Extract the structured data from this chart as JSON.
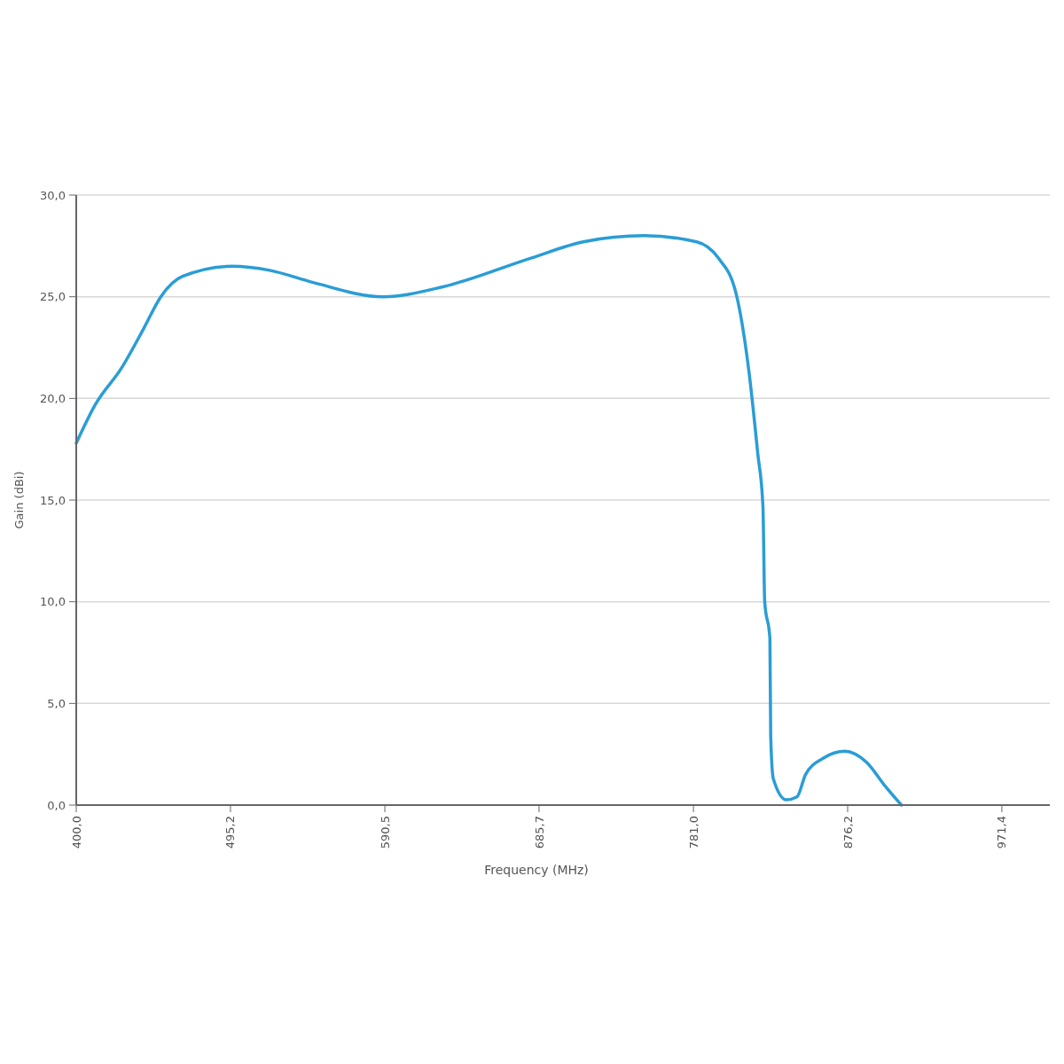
{
  "chart_data": {
    "type": "line",
    "xlabel": "Frequency (MHz)",
    "ylabel": "Gain (dBi)",
    "xlim": [
      400,
      1001
    ],
    "ylim": [
      0,
      30
    ],
    "xticks": [
      {
        "value": 400,
        "label": "400,0"
      },
      {
        "value": 495.2,
        "label": "495,2"
      },
      {
        "value": 590.5,
        "label": "590,5"
      },
      {
        "value": 685.7,
        "label": "685,7"
      },
      {
        "value": 781,
        "label": "781,0"
      },
      {
        "value": 876.2,
        "label": "876,2"
      },
      {
        "value": 971.4,
        "label": "971,4"
      }
    ],
    "yticks": [
      {
        "value": 0,
        "label": "0,0"
      },
      {
        "value": 5,
        "label": "5,0"
      },
      {
        "value": 10,
        "label": "10,0"
      },
      {
        "value": 15,
        "label": "15,0"
      },
      {
        "value": 20,
        "label": "20,0"
      },
      {
        "value": 25,
        "label": "25,0"
      },
      {
        "value": 30,
        "label": "30,0"
      }
    ],
    "grid": "y",
    "marker": "none",
    "line_style": "solid",
    "series": [
      {
        "color": "#2a9dd6",
        "x": [
          400,
          411.8,
          428,
          441.4,
          452.2,
          465.6,
          496.3,
          519.4,
          546.3,
          589.3,
          626.9,
          680.7,
          713,
          750.7,
          783,
          796.4,
          807.2,
          815.3,
          820.7,
          823.9,
          825,
          828.2,
          828.7,
          830.3,
          838.4,
          844.9,
          850.2,
          861,
          874.5,
          887.9,
          898.7,
          909.4
        ],
        "values": [
          17.8,
          19.7,
          21.5,
          23.4,
          25.0,
          26.0,
          26.5,
          26.3,
          25.7,
          25.0,
          25.5,
          26.9,
          27.7,
          28.0,
          27.7,
          26.9,
          25.2,
          21.3,
          17.3,
          14.7,
          10.0,
          8.2,
          3.4,
          1.3,
          0.26,
          0.4,
          1.5,
          2.3,
          2.65,
          2.1,
          1.0,
          0
        ]
      }
    ]
  }
}
